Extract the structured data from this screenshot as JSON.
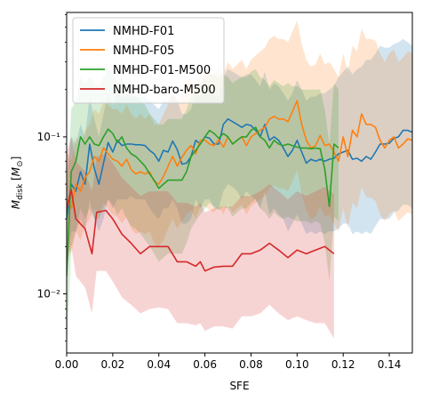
{
  "chart_data": {
    "type": "line",
    "xlabel": "SFE",
    "ylabel": "M_disk [M_⊙]",
    "ylabel_parts": {
      "main": "M",
      "sub": "disk",
      "unit_open": " [",
      "unit_main": "M",
      "unit_sub": "⊙",
      "unit_close": "]"
    },
    "xlim": [
      0,
      0.15
    ],
    "ylim": [
      0.0042,
      0.62
    ],
    "yscale": "log",
    "xticks": [
      0,
      0.02,
      0.04,
      0.06,
      0.08,
      0.1,
      0.12,
      0.14
    ],
    "xtick_labels": [
      "0.00",
      "0.02",
      "0.04",
      "0.06",
      "0.08",
      "0.10",
      "0.12",
      "0.14"
    ],
    "yticks": [
      0.01,
      0.1
    ],
    "ytick_labels": [
      "10⁻²",
      "10⁻¹"
    ],
    "grid": false,
    "legend_position": "top-left",
    "series": [
      {
        "name": "NMHD-F01",
        "color": "#1f77b4",
        "x": [
          0.0,
          0.002,
          0.004,
          0.006,
          0.008,
          0.01,
          0.012,
          0.014,
          0.016,
          0.018,
          0.02,
          0.022,
          0.024,
          0.026,
          0.028,
          0.03,
          0.032,
          0.034,
          0.036,
          0.038,
          0.04,
          0.042,
          0.044,
          0.046,
          0.048,
          0.05,
          0.052,
          0.054,
          0.056,
          0.058,
          0.06,
          0.062,
          0.064,
          0.066,
          0.068,
          0.07,
          0.072,
          0.074,
          0.076,
          0.078,
          0.08,
          0.082,
          0.084,
          0.086,
          0.088,
          0.09,
          0.092,
          0.094,
          0.096,
          0.098,
          0.1,
          0.102,
          0.104,
          0.106,
          0.108,
          0.11,
          0.112,
          0.114,
          0.116,
          0.118,
          0.12,
          0.122,
          0.124,
          0.126,
          0.128,
          0.13,
          0.132,
          0.134,
          0.136,
          0.138,
          0.14,
          0.142,
          0.144,
          0.146,
          0.148,
          0.15
        ],
        "values": [
          0.03,
          0.05,
          0.045,
          0.06,
          0.05,
          0.09,
          0.063,
          0.05,
          0.068,
          0.092,
          0.08,
          0.095,
          0.088,
          0.09,
          0.09,
          0.089,
          0.089,
          0.088,
          0.082,
          0.078,
          0.07,
          0.082,
          0.08,
          0.094,
          0.083,
          0.067,
          0.068,
          0.075,
          0.095,
          0.09,
          0.1,
          0.098,
          0.09,
          0.09,
          0.12,
          0.13,
          0.125,
          0.12,
          0.115,
          0.12,
          0.118,
          0.11,
          0.1,
          0.12,
          0.095,
          0.1,
          0.095,
          0.085,
          0.075,
          0.082,
          0.095,
          0.08,
          0.068,
          0.072,
          0.07,
          0.072,
          0.07,
          0.072,
          0.073,
          0.078,
          0.08,
          0.082,
          0.072,
          0.073,
          0.07,
          0.075,
          0.072,
          0.08,
          0.09,
          0.09,
          0.091,
          0.098,
          0.1,
          0.11,
          0.11,
          0.107
        ],
        "lower": [
          0.015,
          0.025,
          0.025,
          0.03,
          0.025,
          0.04,
          0.03,
          0.025,
          0.03,
          0.04,
          0.035,
          0.04,
          0.04,
          0.04,
          0.042,
          0.04,
          0.04,
          0.04,
          0.035,
          0.032,
          0.03,
          0.035,
          0.035,
          0.04,
          0.035,
          0.028,
          0.028,
          0.03,
          0.04,
          0.035,
          0.04,
          0.04,
          0.035,
          0.035,
          0.045,
          0.05,
          0.048,
          0.045,
          0.04,
          0.045,
          0.042,
          0.04,
          0.035,
          0.045,
          0.032,
          0.035,
          0.032,
          0.03,
          0.025,
          0.028,
          0.032,
          0.028,
          0.024,
          0.025,
          0.024,
          0.025,
          0.024,
          0.025,
          0.025,
          0.026,
          0.028,
          0.028,
          0.024,
          0.025,
          0.024,
          0.025,
          0.024,
          0.027,
          0.03,
          0.03,
          0.03,
          0.033,
          0.034,
          0.037,
          0.037,
          0.035
        ],
        "upper": [
          0.06,
          0.1,
          0.09,
          0.12,
          0.1,
          0.18,
          0.13,
          0.1,
          0.14,
          0.19,
          0.16,
          0.19,
          0.18,
          0.18,
          0.18,
          0.18,
          0.18,
          0.18,
          0.17,
          0.16,
          0.15,
          0.17,
          0.17,
          0.19,
          0.17,
          0.14,
          0.14,
          0.15,
          0.19,
          0.18,
          0.21,
          0.2,
          0.18,
          0.18,
          0.24,
          0.27,
          0.26,
          0.25,
          0.24,
          0.25,
          0.25,
          0.23,
          0.21,
          0.26,
          0.2,
          0.22,
          0.21,
          0.19,
          0.17,
          0.19,
          0.23,
          0.2,
          0.17,
          0.18,
          0.18,
          0.19,
          0.19,
          0.2,
          0.21,
          0.24,
          0.26,
          0.28,
          0.25,
          0.27,
          0.28,
          0.31,
          0.31,
          0.34,
          0.38,
          0.37,
          0.37,
          0.39,
          0.4,
          0.42,
          0.4,
          0.38
        ]
      },
      {
        "name": "NMHD-F05",
        "color": "#ff7f0e",
        "x": [
          0.0,
          0.002,
          0.004,
          0.006,
          0.008,
          0.01,
          0.012,
          0.014,
          0.016,
          0.018,
          0.02,
          0.022,
          0.024,
          0.026,
          0.028,
          0.03,
          0.032,
          0.034,
          0.036,
          0.038,
          0.04,
          0.042,
          0.044,
          0.046,
          0.048,
          0.05,
          0.052,
          0.054,
          0.056,
          0.058,
          0.06,
          0.062,
          0.064,
          0.066,
          0.068,
          0.07,
          0.072,
          0.074,
          0.076,
          0.078,
          0.08,
          0.082,
          0.084,
          0.086,
          0.088,
          0.09,
          0.092,
          0.094,
          0.096,
          0.098,
          0.1,
          0.102,
          0.104,
          0.106,
          0.108,
          0.11,
          0.112,
          0.114,
          0.116,
          0.118,
          0.12,
          0.122,
          0.124,
          0.126,
          0.128,
          0.13,
          0.132,
          0.134,
          0.136,
          0.138,
          0.14,
          0.142,
          0.144,
          0.146,
          0.148,
          0.15
        ],
        "values": [
          0.04,
          0.035,
          0.05,
          0.045,
          0.055,
          0.06,
          0.075,
          0.07,
          0.085,
          0.078,
          0.072,
          0.07,
          0.065,
          0.072,
          0.062,
          0.058,
          0.06,
          0.058,
          0.06,
          0.052,
          0.05,
          0.056,
          0.065,
          0.075,
          0.065,
          0.074,
          0.082,
          0.088,
          0.078,
          0.095,
          0.095,
          0.09,
          0.088,
          0.096,
          0.086,
          0.1,
          0.09,
          0.095,
          0.1,
          0.088,
          0.1,
          0.105,
          0.11,
          0.115,
          0.13,
          0.135,
          0.13,
          0.13,
          0.125,
          0.145,
          0.17,
          0.12,
          0.095,
          0.085,
          0.088,
          0.102,
          0.088,
          0.09,
          0.08,
          0.07,
          0.1,
          0.075,
          0.11,
          0.1,
          0.14,
          0.12,
          0.12,
          0.115,
          0.095,
          0.085,
          0.095,
          0.1,
          0.085,
          0.09,
          0.097,
          0.095
        ],
        "lower": [
          0.02,
          0.018,
          0.025,
          0.022,
          0.027,
          0.03,
          0.035,
          0.032,
          0.038,
          0.035,
          0.032,
          0.031,
          0.028,
          0.031,
          0.026,
          0.024,
          0.025,
          0.024,
          0.025,
          0.021,
          0.02,
          0.022,
          0.026,
          0.03,
          0.026,
          0.029,
          0.032,
          0.034,
          0.03,
          0.036,
          0.036,
          0.034,
          0.033,
          0.036,
          0.032,
          0.037,
          0.033,
          0.035,
          0.037,
          0.032,
          0.036,
          0.038,
          0.04,
          0.042,
          0.047,
          0.049,
          0.047,
          0.047,
          0.045,
          0.052,
          0.061,
          0.043,
          0.034,
          0.03,
          0.031,
          0.036,
          0.031,
          0.032,
          0.028,
          0.025,
          0.035,
          0.026,
          0.038,
          0.035,
          0.048,
          0.041,
          0.041,
          0.039,
          0.032,
          0.029,
          0.032,
          0.034,
          0.029,
          0.031,
          0.033,
          0.032
        ],
        "upper": [
          0.08,
          0.07,
          0.1,
          0.09,
          0.11,
          0.12,
          0.15,
          0.14,
          0.17,
          0.16,
          0.15,
          0.15,
          0.14,
          0.16,
          0.14,
          0.13,
          0.14,
          0.13,
          0.14,
          0.12,
          0.12,
          0.14,
          0.16,
          0.19,
          0.17,
          0.19,
          0.22,
          0.24,
          0.21,
          0.26,
          0.26,
          0.25,
          0.25,
          0.28,
          0.25,
          0.3,
          0.27,
          0.29,
          0.31,
          0.27,
          0.31,
          0.33,
          0.35,
          0.37,
          0.42,
          0.44,
          0.42,
          0.42,
          0.4,
          0.47,
          0.55,
          0.39,
          0.31,
          0.28,
          0.29,
          0.34,
          0.29,
          0.3,
          0.27,
          0.24,
          0.34,
          0.26,
          0.38,
          0.35,
          0.49,
          0.42,
          0.42,
          0.41,
          0.34,
          0.3,
          0.34,
          0.36,
          0.3,
          0.32,
          0.35,
          0.34
        ]
      },
      {
        "name": "NMHD-F01-M500",
        "color": "#2ca02c",
        "x": [
          0.0,
          0.002,
          0.004,
          0.006,
          0.008,
          0.01,
          0.012,
          0.014,
          0.016,
          0.018,
          0.02,
          0.022,
          0.024,
          0.026,
          0.028,
          0.03,
          0.032,
          0.034,
          0.036,
          0.038,
          0.04,
          0.042,
          0.044,
          0.046,
          0.048,
          0.05,
          0.052,
          0.054,
          0.056,
          0.058,
          0.06,
          0.062,
          0.064,
          0.066,
          0.068,
          0.07,
          0.072,
          0.074,
          0.076,
          0.078,
          0.08,
          0.082,
          0.084,
          0.086,
          0.088,
          0.09,
          0.092,
          0.094,
          0.096,
          0.098,
          0.1,
          0.102,
          0.104,
          0.106,
          0.108,
          0.11,
          0.112,
          0.114,
          0.116,
          0.118
        ],
        "values": [
          0.013,
          0.06,
          0.07,
          0.1,
          0.09,
          0.1,
          0.09,
          0.088,
          0.1,
          0.112,
          0.105,
          0.092,
          0.1,
          0.085,
          0.078,
          0.075,
          0.07,
          0.065,
          0.058,
          0.053,
          0.047,
          0.05,
          0.053,
          0.053,
          0.053,
          0.053,
          0.06,
          0.075,
          0.082,
          0.09,
          0.1,
          0.11,
          0.105,
          0.098,
          0.105,
          0.1,
          0.09,
          0.095,
          0.1,
          0.1,
          0.11,
          0.115,
          0.1,
          0.095,
          0.085,
          0.095,
          0.09,
          0.088,
          0.09,
          0.088,
          0.086,
          0.085,
          0.085,
          0.084,
          0.085,
          0.084,
          0.062,
          0.036,
          0.09,
          0.085
        ],
        "lower": [
          0.004,
          0.02,
          0.025,
          0.035,
          0.03,
          0.035,
          0.03,
          0.03,
          0.035,
          0.04,
          0.037,
          0.032,
          0.035,
          0.03,
          0.027,
          0.026,
          0.024,
          0.022,
          0.02,
          0.018,
          0.016,
          0.017,
          0.018,
          0.018,
          0.018,
          0.018,
          0.021,
          0.026,
          0.029,
          0.032,
          0.035,
          0.038,
          0.036,
          0.034,
          0.036,
          0.035,
          0.031,
          0.033,
          0.035,
          0.035,
          0.038,
          0.04,
          0.035,
          0.033,
          0.03,
          0.033,
          0.031,
          0.03,
          0.031,
          0.03,
          0.029,
          0.029,
          0.029,
          0.028,
          0.029,
          0.028,
          0.021,
          0.012,
          0.031,
          0.029
        ],
        "upper": [
          0.035,
          0.15,
          0.17,
          0.24,
          0.22,
          0.24,
          0.22,
          0.21,
          0.24,
          0.27,
          0.25,
          0.22,
          0.24,
          0.2,
          0.19,
          0.18,
          0.17,
          0.16,
          0.14,
          0.13,
          0.12,
          0.12,
          0.13,
          0.13,
          0.13,
          0.13,
          0.15,
          0.18,
          0.2,
          0.22,
          0.24,
          0.26,
          0.25,
          0.24,
          0.25,
          0.24,
          0.22,
          0.23,
          0.24,
          0.24,
          0.26,
          0.27,
          0.24,
          0.23,
          0.21,
          0.23,
          0.22,
          0.21,
          0.22,
          0.21,
          0.21,
          0.2,
          0.2,
          0.2,
          0.2,
          0.2,
          0.15,
          0.09,
          0.22,
          0.2
        ]
      },
      {
        "name": "NMHD-baro-M500",
        "color": "#d62728",
        "x": [
          0.0,
          0.002,
          0.004,
          0.008,
          0.011,
          0.013,
          0.017,
          0.02,
          0.024,
          0.028,
          0.032,
          0.036,
          0.04,
          0.044,
          0.048,
          0.052,
          0.056,
          0.058,
          0.06,
          0.064,
          0.068,
          0.072,
          0.076,
          0.08,
          0.084,
          0.088,
          0.092,
          0.096,
          0.1,
          0.104,
          0.108,
          0.112,
          0.116
        ],
        "values": [
          0.035,
          0.046,
          0.03,
          0.026,
          0.018,
          0.033,
          0.034,
          0.03,
          0.024,
          0.021,
          0.018,
          0.02,
          0.02,
          0.02,
          0.016,
          0.016,
          0.015,
          0.016,
          0.014,
          0.0148,
          0.015,
          0.015,
          0.018,
          0.018,
          0.019,
          0.021,
          0.019,
          0.017,
          0.019,
          0.018,
          0.019,
          0.02,
          0.018
        ],
        "lower": [
          0.015,
          0.02,
          0.013,
          0.011,
          0.0075,
          0.014,
          0.014,
          0.012,
          0.0095,
          0.0085,
          0.0075,
          0.008,
          0.0082,
          0.008,
          0.0065,
          0.0065,
          0.0063,
          0.0065,
          0.0058,
          0.0062,
          0.0062,
          0.006,
          0.0072,
          0.0072,
          0.0075,
          0.0085,
          0.0075,
          0.0068,
          0.0072,
          0.0068,
          0.0065,
          0.0065,
          0.0052
        ],
        "upper": [
          0.08,
          0.1,
          0.07,
          0.06,
          0.045,
          0.075,
          0.078,
          0.068,
          0.055,
          0.048,
          0.042,
          0.045,
          0.045,
          0.045,
          0.038,
          0.038,
          0.036,
          0.038,
          0.033,
          0.035,
          0.036,
          0.036,
          0.042,
          0.042,
          0.045,
          0.05,
          0.045,
          0.04,
          0.045,
          0.042,
          0.045,
          0.048,
          0.043
        ]
      }
    ]
  }
}
